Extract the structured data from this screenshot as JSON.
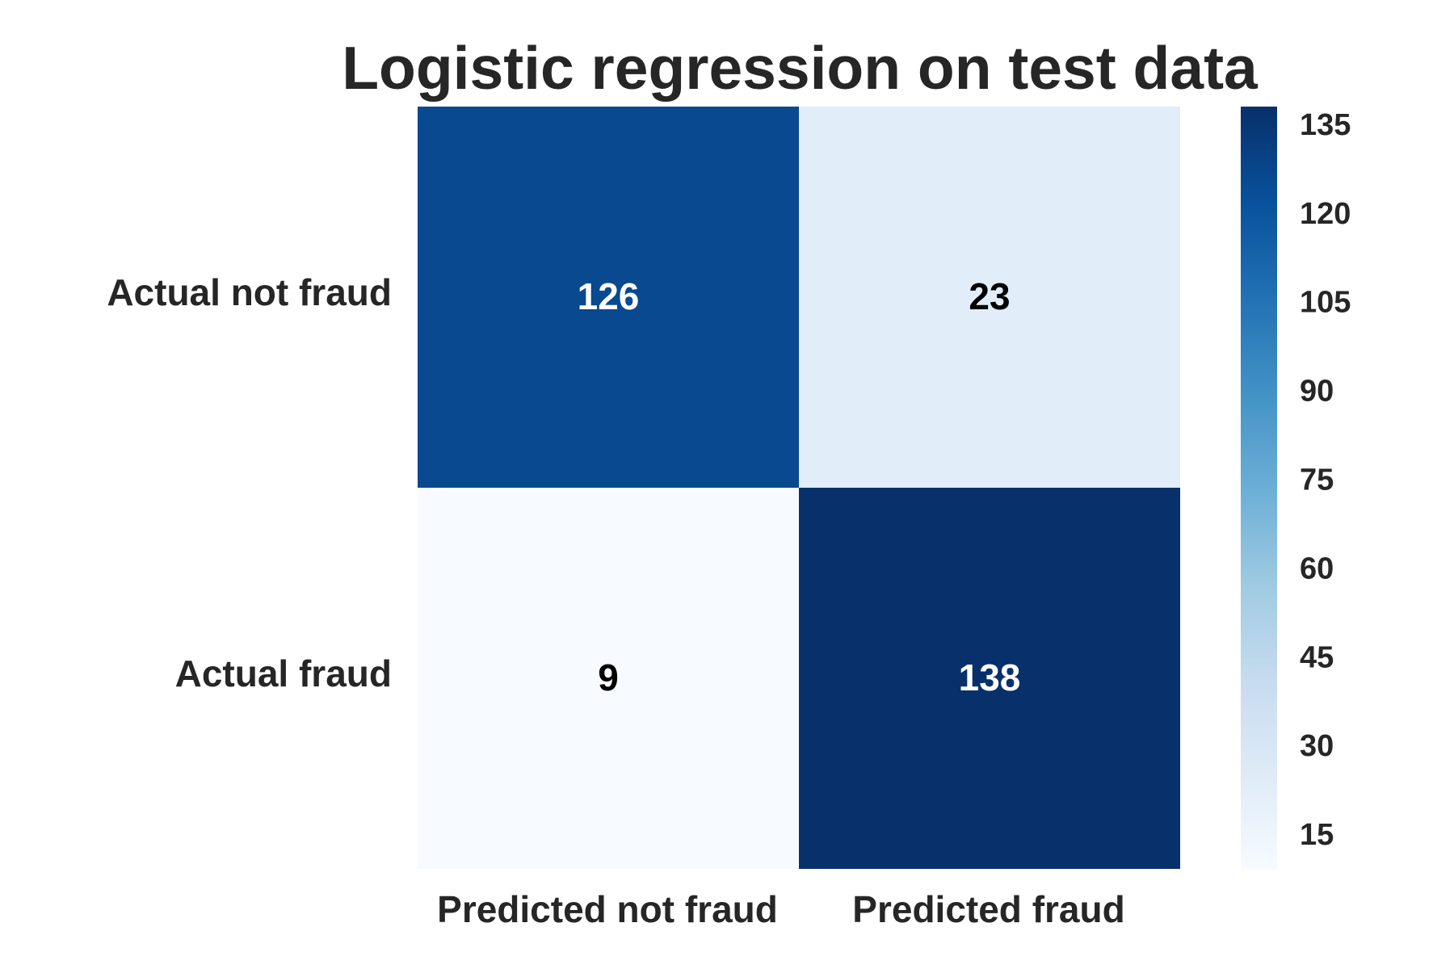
{
  "chart_data": {
    "type": "heatmap",
    "title": "Logistic regression on test data",
    "row_labels": [
      "Actual not fraud",
      "Actual fraud"
    ],
    "col_labels": [
      "Predicted not fraud",
      "Predicted fraud"
    ],
    "values": [
      [
        126,
        23
      ],
      [
        9,
        138
      ]
    ],
    "colorbar": {
      "min": 9,
      "max": 138,
      "ticks": [
        15,
        30,
        45,
        60,
        75,
        90,
        105,
        120,
        135
      ]
    },
    "colormap": "Blues",
    "colors": {
      "low": "#f7fbff",
      "high": "#08306b",
      "text_dark": "#000000",
      "text_light": "#ffffff",
      "label": "#262626"
    },
    "grid": false
  }
}
